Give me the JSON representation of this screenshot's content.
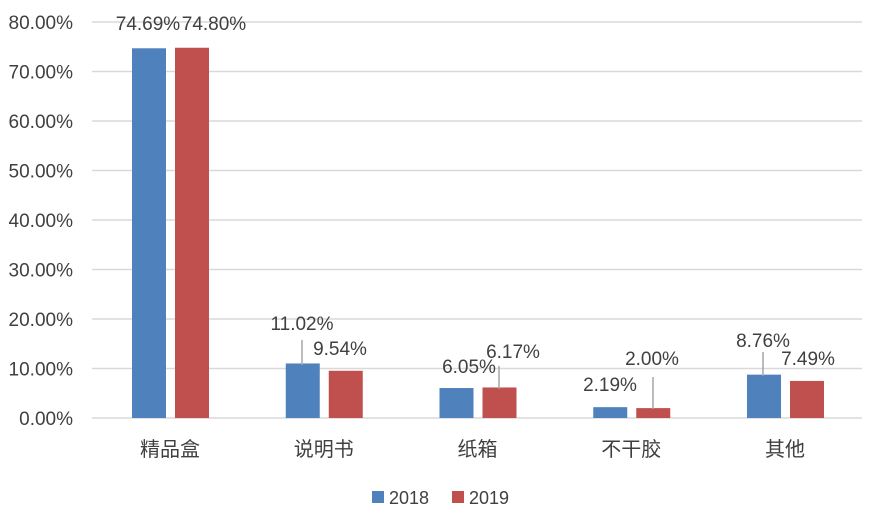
{
  "chart_data": {
    "type": "bar",
    "title": "",
    "xlabel": "",
    "ylabel": "",
    "categories": [
      "精品盒",
      "说明书",
      "纸箱",
      "不干胶",
      "其他"
    ],
    "series": [
      {
        "name": "2018",
        "color": "#4F81BD",
        "values": [
          74.69,
          11.02,
          6.05,
          2.19,
          8.76
        ],
        "labels": [
          "74.69%",
          "11.02%",
          "6.05%",
          "2.19%",
          "8.76%"
        ]
      },
      {
        "name": "2019",
        "color": "#C0504D",
        "values": [
          74.8,
          9.54,
          6.17,
          2.0,
          7.49
        ],
        "labels": [
          "74.80%",
          "9.54%",
          "6.17%",
          "2.00%",
          "7.49%"
        ]
      }
    ],
    "ylim": [
      0,
      80
    ],
    "yticks": [
      "0.00%",
      "10.00%",
      "20.00%",
      "30.00%",
      "40.00%",
      "50.00%",
      "60.00%",
      "70.00%",
      "80.00%"
    ],
    "grid": true,
    "legend_position": "bottom"
  }
}
